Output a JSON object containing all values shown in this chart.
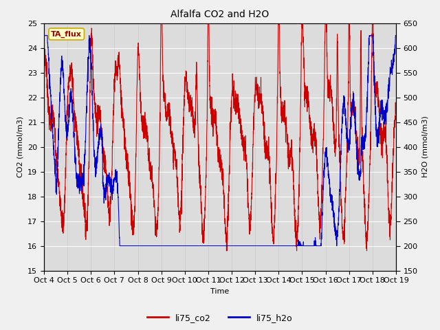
{
  "title": "Alfalfa CO2 and H2O",
  "xlabel": "Time",
  "ylabel_left": "CO2 (mmol/m3)",
  "ylabel_right": "H2O (mmol/m3)",
  "ylim_left": [
    15.0,
    25.0
  ],
  "ylim_right": [
    150,
    650
  ],
  "yticks_left": [
    15.0,
    16.0,
    17.0,
    18.0,
    19.0,
    20.0,
    21.0,
    22.0,
    23.0,
    24.0,
    25.0
  ],
  "yticks_right": [
    150,
    200,
    250,
    300,
    350,
    400,
    450,
    500,
    550,
    600,
    650
  ],
  "xtick_labels": [
    "Oct 4",
    "Oct 5",
    "Oct 6",
    "Oct 7",
    "Oct 8",
    "Oct 9",
    "Oct 10",
    "Oct 11",
    "Oct 12",
    "Oct 13",
    "Oct 14",
    "Oct 15",
    "Oct 16",
    "Oct 17",
    "Oct 18",
    "Oct 19"
  ],
  "annotation_text": "TA_flux",
  "annotation_bg": "#ffffcc",
  "annotation_border": "#ccaa00",
  "legend_labels": [
    "li75_co2",
    "li75_h2o"
  ],
  "co2_color": "#cc0000",
  "h2o_color": "#0000cc",
  "fig_bg_color": "#f0f0f0",
  "plot_bg_color": "#dcdcdc",
  "grid_color": "#ffffff",
  "linewidth": 0.8,
  "title_fontsize": 10,
  "label_fontsize": 8,
  "tick_fontsize": 8
}
